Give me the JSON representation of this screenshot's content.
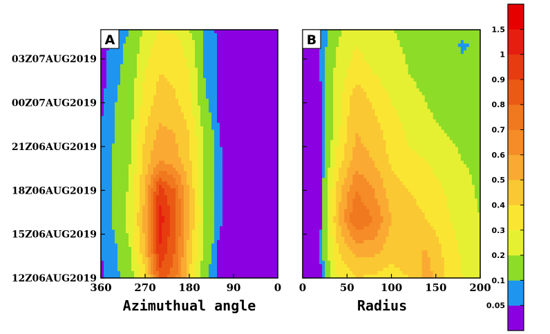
{
  "chart_data": [
    {
      "type": "heatmap",
      "panel_label": "A",
      "xlabel": "Azimuthual angle",
      "ylabel": "",
      "xlim": [
        360,
        0
      ],
      "x_ticks": [
        360,
        270,
        180,
        90,
        0
      ],
      "x_tick_labels": [
        "360",
        "270",
        "180",
        "90",
        "0"
      ],
      "y_tick_labels": [
        "12Z06AUG2019",
        "15Z06AUG2019",
        "18Z06AUG2019",
        "21Z06AUG2019",
        "00Z07AUG2019",
        "03Z07AUG2019"
      ],
      "y_range_hours": [
        0,
        17
      ],
      "y_tick_hours": [
        0,
        3,
        6,
        9,
        12,
        15
      ],
      "field": {
        "x_knots": [
          360,
          330,
          300,
          270,
          240,
          210,
          180,
          150,
          120,
          90,
          60,
          30,
          0
        ],
        "y_hours": [
          0,
          2,
          4,
          6,
          8,
          10,
          12,
          14,
          16,
          17
        ],
        "values": [
          [
            0.04,
            0.08,
            0.15,
            0.35,
            0.85,
            0.75,
            0.4,
            0.12,
            0.03,
            0.02,
            0.02,
            0.02,
            0.02
          ],
          [
            0.05,
            0.09,
            0.2,
            0.5,
            1.0,
            0.8,
            0.45,
            0.18,
            0.04,
            0.02,
            0.02,
            0.02,
            0.02
          ],
          [
            0.06,
            0.12,
            0.25,
            0.55,
            1.05,
            0.85,
            0.5,
            0.2,
            0.06,
            0.02,
            0.02,
            0.02,
            0.02
          ],
          [
            0.05,
            0.12,
            0.22,
            0.5,
            0.95,
            0.8,
            0.48,
            0.2,
            0.06,
            0.02,
            0.02,
            0.02,
            0.02
          ],
          [
            0.06,
            0.12,
            0.2,
            0.45,
            0.6,
            0.55,
            0.42,
            0.2,
            0.06,
            0.02,
            0.02,
            0.02,
            0.02
          ],
          [
            0.05,
            0.1,
            0.18,
            0.4,
            0.52,
            0.5,
            0.4,
            0.18,
            0.05,
            0.02,
            0.02,
            0.02,
            0.02
          ],
          [
            0.04,
            0.1,
            0.15,
            0.35,
            0.45,
            0.42,
            0.33,
            0.12,
            0.04,
            0.02,
            0.02,
            0.02,
            0.02
          ],
          [
            0.03,
            0.08,
            0.14,
            0.3,
            0.4,
            0.38,
            0.3,
            0.1,
            0.04,
            0.02,
            0.02,
            0.02,
            0.02
          ],
          [
            0.03,
            0.07,
            0.12,
            0.25,
            0.35,
            0.35,
            0.25,
            0.1,
            0.04,
            0.02,
            0.02,
            0.02,
            0.02
          ],
          [
            0.03,
            0.06,
            0.1,
            0.22,
            0.3,
            0.28,
            0.2,
            0.08,
            0.04,
            0.02,
            0.02,
            0.02,
            0.02
          ]
        ]
      }
    },
    {
      "type": "heatmap",
      "panel_label": "B",
      "xlabel": "Radius",
      "ylabel": "",
      "xlim": [
        0,
        200
      ],
      "x_ticks": [
        0,
        50,
        100,
        150,
        200
      ],
      "x_tick_labels": [
        "0",
        "50",
        "100",
        "150",
        "200"
      ],
      "y_range_hours": [
        0,
        17
      ],
      "field": {
        "x_knots": [
          0,
          20,
          40,
          60,
          80,
          100,
          120,
          140,
          160,
          180,
          200
        ],
        "y_hours": [
          0,
          2,
          4,
          6,
          8,
          10,
          12,
          14,
          16,
          17
        ],
        "values": [
          [
            0.03,
            0.04,
            0.3,
            0.4,
            0.38,
            0.35,
            0.4,
            0.55,
            0.4,
            0.3,
            0.22
          ],
          [
            0.03,
            0.05,
            0.4,
            0.55,
            0.55,
            0.45,
            0.5,
            0.5,
            0.38,
            0.28,
            0.22
          ],
          [
            0.02,
            0.04,
            0.5,
            0.8,
            0.7,
            0.5,
            0.45,
            0.4,
            0.32,
            0.25,
            0.2
          ],
          [
            0.02,
            0.04,
            0.45,
            0.7,
            0.6,
            0.45,
            0.4,
            0.35,
            0.3,
            0.24,
            0.18
          ],
          [
            0.02,
            0.03,
            0.35,
            0.55,
            0.5,
            0.38,
            0.32,
            0.3,
            0.25,
            0.2,
            0.18
          ],
          [
            0.02,
            0.03,
            0.28,
            0.5,
            0.45,
            0.35,
            0.28,
            0.25,
            0.2,
            0.17,
            0.15
          ],
          [
            0.02,
            0.04,
            0.25,
            0.5,
            0.38,
            0.3,
            0.25,
            0.2,
            0.12,
            0.15,
            0.15
          ],
          [
            0.03,
            0.05,
            0.25,
            0.35,
            0.3,
            0.25,
            0.2,
            0.15,
            0.14,
            0.12,
            0.12
          ],
          [
            0.04,
            0.05,
            0.2,
            0.3,
            0.25,
            0.22,
            0.18,
            0.15,
            0.14,
            0.09,
            0.12
          ],
          [
            0.04,
            0.05,
            0.18,
            0.25,
            0.22,
            0.2,
            0.18,
            0.15,
            0.14,
            0.13,
            0.13
          ]
        ]
      }
    }
  ],
  "colorbar": {
    "labels": [
      "0.05",
      "0.1",
      "0.2",
      "0.3",
      "0.4",
      "0.5",
      "0.6",
      "0.7",
      "0.8",
      "0.9",
      "1",
      "1.5"
    ],
    "levels": [
      0.05,
      0.1,
      0.2,
      0.3,
      0.4,
      0.5,
      0.6,
      0.7,
      0.8,
      0.9,
      1,
      1.5
    ],
    "colors": [
      "#8b00e0",
      "#1e96f0",
      "#8cdc28",
      "#e6f032",
      "#fae632",
      "#fac832",
      "#faaa32",
      "#f58c28",
      "#f0781e",
      "#eb5a14",
      "#e63c0f",
      "#e61e0f",
      "#e60000"
    ]
  }
}
